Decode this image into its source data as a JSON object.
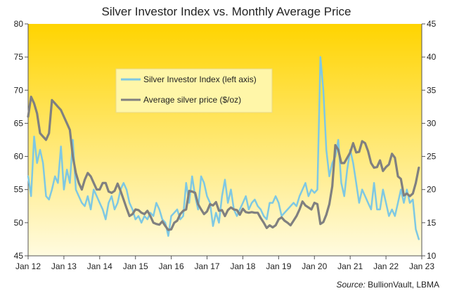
{
  "chart_data": {
    "type": "line",
    "title": "Silver Investor  Index vs. Monthly  Average Price",
    "source_label": "Source:",
    "source_value": " BullionVault, LBMA",
    "x_tick_labels": [
      "Jan 12",
      "Jan 13",
      "Jan 14",
      "Jan 15",
      "Jan 16",
      "Jan 17",
      "Jan 18",
      "Jan 19",
      "Jan 20",
      "Jan 21",
      "Jan 22",
      "Jan 23"
    ],
    "x_range_months": [
      0,
      132
    ],
    "y_left": {
      "ticks": [
        45,
        50,
        55,
        60,
        65,
        70,
        75,
        80
      ],
      "ylim": [
        45,
        80
      ]
    },
    "y_right": {
      "ticks": [
        10,
        15,
        20,
        25,
        30,
        35,
        40,
        45
      ],
      "ylim": [
        10,
        45
      ]
    },
    "legend_position": "top-center",
    "grid": false,
    "background_gradient": {
      "top": "#ffd400",
      "bottom": "#fffbe0"
    },
    "series": [
      {
        "name": "Silver Investor Index (left axis)",
        "axis": "left",
        "color": "#7ec8e3",
        "points": [
          [
            "2012-01",
            57
          ],
          [
            "2012-02",
            54
          ],
          [
            "2012-03",
            63
          ],
          [
            "2012-04",
            59
          ],
          [
            "2012-05",
            61
          ],
          [
            "2012-06",
            59
          ],
          [
            "2012-07",
            54
          ],
          [
            "2012-08",
            53.5
          ],
          [
            "2012-09",
            55
          ],
          [
            "2012-10",
            57
          ],
          [
            "2012-11",
            56
          ],
          [
            "2012-12",
            61.5
          ],
          [
            "2013-01",
            55
          ],
          [
            "2013-02",
            58
          ],
          [
            "2013-03",
            56
          ],
          [
            "2013-04",
            62.5
          ],
          [
            "2013-05",
            55
          ],
          [
            "2013-06",
            54
          ],
          [
            "2013-07",
            53
          ],
          [
            "2013-08",
            52.5
          ],
          [
            "2013-09",
            54
          ],
          [
            "2013-10",
            52
          ],
          [
            "2013-11",
            55
          ],
          [
            "2013-12",
            54
          ],
          [
            "2014-01",
            53
          ],
          [
            "2014-02",
            52
          ],
          [
            "2014-03",
            50.5
          ],
          [
            "2014-04",
            53
          ],
          [
            "2014-05",
            54
          ],
          [
            "2014-06",
            52
          ],
          [
            "2014-07",
            53
          ],
          [
            "2014-08",
            55
          ],
          [
            "2014-09",
            56
          ],
          [
            "2014-10",
            55
          ],
          [
            "2014-11",
            53
          ],
          [
            "2014-12",
            52
          ],
          [
            "2015-01",
            50.5
          ],
          [
            "2015-02",
            51
          ],
          [
            "2015-03",
            50
          ],
          [
            "2015-04",
            51
          ],
          [
            "2015-05",
            50.5
          ],
          [
            "2015-06",
            51.5
          ],
          [
            "2015-07",
            51
          ],
          [
            "2015-08",
            53
          ],
          [
            "2015-09",
            52
          ],
          [
            "2015-10",
            50.5
          ],
          [
            "2015-11",
            50
          ],
          [
            "2015-12",
            48
          ],
          [
            "2016-01",
            51
          ],
          [
            "2016-02",
            51.5
          ],
          [
            "2016-03",
            52
          ],
          [
            "2016-04",
            50.5
          ],
          [
            "2016-05",
            51
          ],
          [
            "2016-06",
            56
          ],
          [
            "2016-07",
            53
          ],
          [
            "2016-08",
            57
          ],
          [
            "2016-09",
            54
          ],
          [
            "2016-10",
            52
          ],
          [
            "2016-11",
            57
          ],
          [
            "2016-12",
            56
          ],
          [
            "2017-01",
            54
          ],
          [
            "2017-02",
            53
          ],
          [
            "2017-03",
            49.5
          ],
          [
            "2017-04",
            51.5
          ],
          [
            "2017-05",
            50
          ],
          [
            "2017-06",
            54
          ],
          [
            "2017-07",
            56.5
          ],
          [
            "2017-08",
            53
          ],
          [
            "2017-09",
            55
          ],
          [
            "2017-10",
            52
          ],
          [
            "2017-11",
            51
          ],
          [
            "2017-12",
            52
          ],
          [
            "2018-01",
            53
          ],
          [
            "2018-02",
            54
          ],
          [
            "2018-03",
            52
          ],
          [
            "2018-04",
            53
          ],
          [
            "2018-05",
            53.5
          ],
          [
            "2018-06",
            52.5
          ],
          [
            "2018-07",
            52
          ],
          [
            "2018-08",
            51
          ],
          [
            "2018-09",
            50.5
          ],
          [
            "2018-10",
            53
          ],
          [
            "2018-11",
            53
          ],
          [
            "2018-12",
            54
          ],
          [
            "2019-01",
            53
          ],
          [
            "2019-02",
            51
          ],
          [
            "2019-03",
            51.5
          ],
          [
            "2019-04",
            52
          ],
          [
            "2019-05",
            52.5
          ],
          [
            "2019-06",
            53
          ],
          [
            "2019-07",
            52.5
          ],
          [
            "2019-08",
            54
          ],
          [
            "2019-09",
            55
          ],
          [
            "2019-10",
            56
          ],
          [
            "2019-11",
            54
          ],
          [
            "2019-12",
            55
          ],
          [
            "2020-01",
            54.5
          ],
          [
            "2020-02",
            55
          ],
          [
            "2020-03",
            75
          ],
          [
            "2020-04",
            70
          ],
          [
            "2020-05",
            61
          ],
          [
            "2020-06",
            57
          ],
          [
            "2020-07",
            59
          ],
          [
            "2020-08",
            60
          ],
          [
            "2020-09",
            62.5
          ],
          [
            "2020-10",
            56
          ],
          [
            "2020-11",
            54
          ],
          [
            "2020-12",
            58
          ],
          [
            "2021-01",
            61
          ],
          [
            "2021-02",
            59
          ],
          [
            "2021-03",
            56
          ],
          [
            "2021-04",
            53
          ],
          [
            "2021-05",
            55
          ],
          [
            "2021-06",
            54
          ],
          [
            "2021-07",
            53
          ],
          [
            "2021-08",
            52
          ],
          [
            "2021-09",
            56
          ],
          [
            "2021-10",
            52
          ],
          [
            "2021-11",
            52
          ],
          [
            "2021-12",
            55
          ],
          [
            "2022-01",
            53
          ],
          [
            "2022-02",
            51
          ],
          [
            "2022-03",
            52
          ],
          [
            "2022-04",
            51
          ],
          [
            "2022-05",
            53
          ],
          [
            "2022-06",
            55
          ],
          [
            "2022-07",
            53
          ],
          [
            "2022-08",
            55
          ],
          [
            "2022-09",
            53
          ],
          [
            "2022-10",
            53.5
          ],
          [
            "2022-11",
            49
          ],
          [
            "2022-12",
            47.5
          ]
        ]
      },
      {
        "name": "Average silver price ($/oz)",
        "axis": "right",
        "color": "#808080",
        "points": [
          [
            "2012-01",
            31
          ],
          [
            "2012-02",
            34
          ],
          [
            "2012-03",
            33
          ],
          [
            "2012-04",
            31.5
          ],
          [
            "2012-05",
            28.5
          ],
          [
            "2012-06",
            28
          ],
          [
            "2012-07",
            27.5
          ],
          [
            "2012-08",
            28.5
          ],
          [
            "2012-09",
            33.5
          ],
          [
            "2012-10",
            33
          ],
          [
            "2012-11",
            32.5
          ],
          [
            "2012-12",
            32
          ],
          [
            "2013-01",
            31
          ],
          [
            "2013-02",
            30
          ],
          [
            "2013-03",
            29
          ],
          [
            "2013-04",
            25
          ],
          [
            "2013-05",
            22.5
          ],
          [
            "2013-06",
            21
          ],
          [
            "2013-07",
            20
          ],
          [
            "2013-08",
            21.5
          ],
          [
            "2013-09",
            22.5
          ],
          [
            "2013-10",
            22
          ],
          [
            "2013-11",
            21
          ],
          [
            "2013-12",
            20
          ],
          [
            "2014-01",
            20
          ],
          [
            "2014-02",
            21
          ],
          [
            "2014-03",
            21
          ],
          [
            "2014-04",
            19.7
          ],
          [
            "2014-05",
            19.5
          ],
          [
            "2014-06",
            19.8
          ],
          [
            "2014-07",
            20.9
          ],
          [
            "2014-08",
            19.8
          ],
          [
            "2014-09",
            18.5
          ],
          [
            "2014-10",
            17.2
          ],
          [
            "2014-11",
            16
          ],
          [
            "2014-12",
            16.3
          ],
          [
            "2015-01",
            17
          ],
          [
            "2015-02",
            16.9
          ],
          [
            "2015-03",
            16.5
          ],
          [
            "2015-04",
            16.3
          ],
          [
            "2015-05",
            16.8
          ],
          [
            "2015-06",
            16
          ],
          [
            "2015-07",
            15
          ],
          [
            "2015-08",
            14.8
          ],
          [
            "2015-09",
            14.7
          ],
          [
            "2015-10",
            15.2
          ],
          [
            "2015-11",
            14.5
          ],
          [
            "2015-12",
            13.9
          ],
          [
            "2016-01",
            14
          ],
          [
            "2016-02",
            15
          ],
          [
            "2016-03",
            15.3
          ],
          [
            "2016-04",
            16.3
          ],
          [
            "2016-05",
            16.8
          ],
          [
            "2016-06",
            17
          ],
          [
            "2016-07",
            19.8
          ],
          [
            "2016-08",
            19.7
          ],
          [
            "2016-09",
            19.5
          ],
          [
            "2016-10",
            17.8
          ],
          [
            "2016-11",
            17
          ],
          [
            "2016-12",
            16.3
          ],
          [
            "2017-01",
            16.7
          ],
          [
            "2017-02",
            17.8
          ],
          [
            "2017-03",
            17.6
          ],
          [
            "2017-04",
            18.1
          ],
          [
            "2017-05",
            16.8
          ],
          [
            "2017-06",
            16.9
          ],
          [
            "2017-07",
            16
          ],
          [
            "2017-08",
            16.9
          ],
          [
            "2017-09",
            17.3
          ],
          [
            "2017-10",
            17
          ],
          [
            "2017-11",
            16.9
          ],
          [
            "2017-12",
            16.2
          ],
          [
            "2018-01",
            17.1
          ],
          [
            "2018-02",
            16.6
          ],
          [
            "2018-03",
            16.5
          ],
          [
            "2018-04",
            16.6
          ],
          [
            "2018-05",
            16.5
          ],
          [
            "2018-06",
            16.5
          ],
          [
            "2018-07",
            15.7
          ],
          [
            "2018-08",
            15
          ],
          [
            "2018-09",
            14.2
          ],
          [
            "2018-10",
            14.6
          ],
          [
            "2018-11",
            14.3
          ],
          [
            "2018-12",
            14.6
          ],
          [
            "2019-01",
            15.5
          ],
          [
            "2019-02",
            15.8
          ],
          [
            "2019-03",
            15.3
          ],
          [
            "2019-04",
            15
          ],
          [
            "2019-05",
            14.6
          ],
          [
            "2019-06",
            15.3
          ],
          [
            "2019-07",
            16
          ],
          [
            "2019-08",
            17
          ],
          [
            "2019-09",
            18.2
          ],
          [
            "2019-10",
            17.6
          ],
          [
            "2019-11",
            17.3
          ],
          [
            "2019-12",
            17
          ],
          [
            "2020-01",
            18
          ],
          [
            "2020-02",
            17.8
          ],
          [
            "2020-03",
            14.8
          ],
          [
            "2020-04",
            15.1
          ],
          [
            "2020-05",
            16.2
          ],
          [
            "2020-06",
            17.8
          ],
          [
            "2020-07",
            20.5
          ],
          [
            "2020-08",
            26.7
          ],
          [
            "2020-09",
            26
          ],
          [
            "2020-10",
            24
          ],
          [
            "2020-11",
            24
          ],
          [
            "2020-12",
            24.8
          ],
          [
            "2021-01",
            25.6
          ],
          [
            "2021-02",
            27
          ],
          [
            "2021-03",
            25.6
          ],
          [
            "2021-04",
            25.7
          ],
          [
            "2021-05",
            27.3
          ],
          [
            "2021-06",
            27
          ],
          [
            "2021-07",
            25.8
          ],
          [
            "2021-08",
            24
          ],
          [
            "2021-09",
            23.3
          ],
          [
            "2021-10",
            23.4
          ],
          [
            "2021-11",
            24.4
          ],
          [
            "2021-12",
            22.8
          ],
          [
            "2022-01",
            23.4
          ],
          [
            "2022-02",
            23.8
          ],
          [
            "2022-03",
            25.4
          ],
          [
            "2022-04",
            24.8
          ],
          [
            "2022-05",
            22
          ],
          [
            "2022-06",
            21.6
          ],
          [
            "2022-07",
            19.1
          ],
          [
            "2022-08",
            19.4
          ],
          [
            "2022-09",
            19
          ],
          [
            "2022-10",
            19.4
          ],
          [
            "2022-11",
            21
          ],
          [
            "2022-12",
            23.3
          ]
        ]
      }
    ]
  }
}
